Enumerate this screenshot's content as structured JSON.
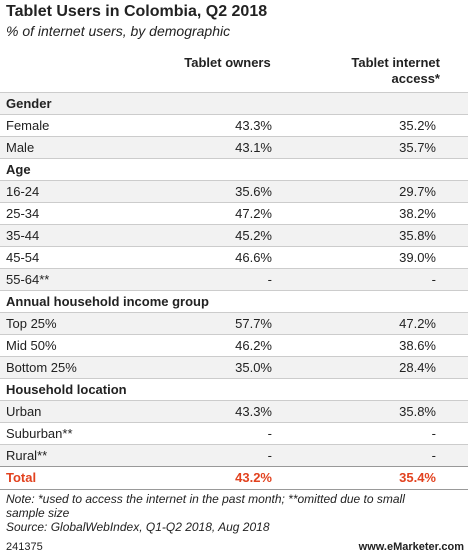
{
  "header": {
    "title": "Tablet Users in Colombia, Q2 2018",
    "subtitle": "% of internet users, by demographic"
  },
  "table": {
    "columns": [
      "Tablet owners",
      "Tablet internet access*"
    ],
    "sections": [
      {
        "label": "Gender",
        "rows": [
          [
            "Female",
            "43.3%",
            "35.2%"
          ],
          [
            "Male",
            "43.1%",
            "35.7%"
          ]
        ]
      },
      {
        "label": "Age",
        "rows": [
          [
            "16-24",
            "35.6%",
            "29.7%"
          ],
          [
            "25-34",
            "47.2%",
            "38.2%"
          ],
          [
            "35-44",
            "45.2%",
            "35.8%"
          ],
          [
            "45-54",
            "46.6%",
            "39.0%"
          ],
          [
            "55-64**",
            "-",
            "-"
          ]
        ]
      },
      {
        "label": "Annual household income group",
        "rows": [
          [
            "Top 25%",
            "57.7%",
            "47.2%"
          ],
          [
            "Mid 50%",
            "46.2%",
            "38.6%"
          ],
          [
            "Bottom 25%",
            "35.0%",
            "28.4%"
          ]
        ]
      },
      {
        "label": "Household location",
        "rows": [
          [
            "Urban",
            "43.3%",
            "35.8%"
          ],
          [
            "Suburban**",
            "-",
            "-"
          ],
          [
            "Rural**",
            "-",
            "-"
          ]
        ]
      }
    ],
    "total": [
      "Total",
      "43.2%",
      "35.4%"
    ]
  },
  "notes": [
    "Note: *used to access the internet in the past month; **omitted due to small sample size",
    "Source: GlobalWebIndex, Q1-Q2 2018, Aug 2018"
  ],
  "footer": {
    "id": "241375",
    "site": "www.eMarketer.com"
  }
}
